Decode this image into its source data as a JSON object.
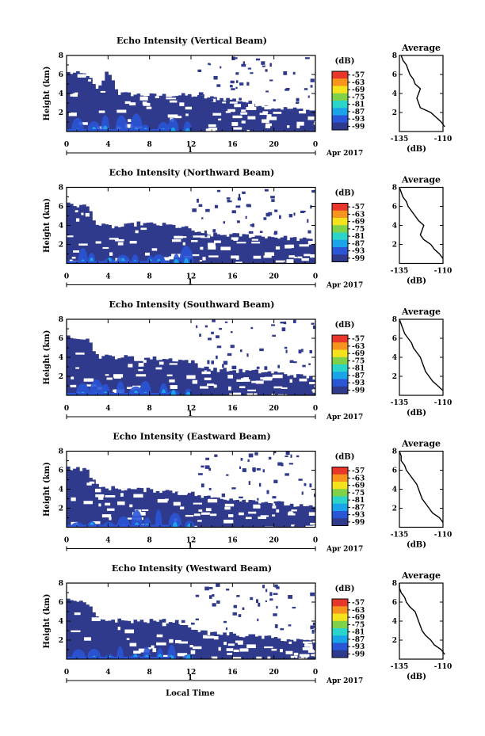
{
  "figure": {
    "colorbar_unit": "(dB)",
    "x_axis_label": "Local Time",
    "date_label": "Apr 2017",
    "day_tick_label": "1",
    "colorbar": {
      "ticks": [
        "-57",
        "-63",
        "-69",
        "-75",
        "-81",
        "-87",
        "-93",
        "-99"
      ],
      "colors": [
        "#e8372a",
        "#f7941d",
        "#f4e31c",
        "#7fd14a",
        "#2bd4c8",
        "#1aa3e8",
        "#2a55d6",
        "#303a8c"
      ]
    }
  },
  "chart_data": [
    {
      "type": "heatmap",
      "title": "Echo Intensity (Vertical Beam)",
      "ylabel": "Height (km)",
      "xlabel": "Local Time",
      "x_ticks": [
        "0",
        "4",
        "8",
        "12",
        "16",
        "20",
        "0"
      ],
      "xlim": [
        0,
        24
      ],
      "y_ticks": [
        "8",
        "6",
        "4",
        "2"
      ],
      "ylim": [
        0,
        8
      ],
      "colorbar_range": [
        -99,
        -57
      ],
      "echo_top_km": [
        [
          0,
          6.2
        ],
        [
          2,
          6.0
        ],
        [
          3,
          4.2
        ],
        [
          4,
          6.5
        ],
        [
          5,
          4.0
        ],
        [
          8,
          3.8
        ],
        [
          12,
          3.8
        ],
        [
          13,
          3.6
        ],
        [
          16,
          3.4
        ],
        [
          20,
          2.5
        ],
        [
          24,
          2.2
        ]
      ],
      "average_profile": {
        "title": "Average",
        "xlabel": "(dB)",
        "x_ticks": [
          "-135",
          "-110"
        ],
        "xlim": [
          -135,
          -110
        ],
        "y_ticks": [
          "8",
          "6",
          "4",
          "2"
        ],
        "ylim": [
          0,
          8
        ],
        "height_km": [
          0.5,
          1.0,
          1.5,
          2.0,
          2.5,
          3.0,
          3.5,
          4.0,
          4.5,
          5.0,
          5.5,
          6.0,
          6.5,
          7.0,
          7.5,
          8.0
        ],
        "value_db": [
          -109,
          -111,
          -114,
          -117,
          -123,
          -124,
          -125,
          -124,
          -123,
          -126,
          -127,
          -129,
          -130,
          -131,
          -133,
          -134
        ]
      }
    },
    {
      "type": "heatmap",
      "title": "Echo Intensity (Northward Beam)",
      "ylabel": "Height (km)",
      "xlabel": "Local Time",
      "x_ticks": [
        "0",
        "4",
        "8",
        "12",
        "16",
        "20",
        "0"
      ],
      "xlim": [
        0,
        24
      ],
      "y_ticks": [
        "8",
        "6",
        "4",
        "2"
      ],
      "ylim": [
        0,
        8
      ],
      "colorbar_range": [
        -99,
        -57
      ],
      "echo_top_km": [
        [
          0,
          6.2
        ],
        [
          2,
          6.0
        ],
        [
          3,
          4.0
        ],
        [
          5,
          3.8
        ],
        [
          7,
          4.2
        ],
        [
          10,
          4.0
        ],
        [
          12,
          3.6
        ],
        [
          13,
          3.0
        ],
        [
          16,
          3.0
        ],
        [
          20,
          2.8
        ],
        [
          24,
          2.4
        ]
      ],
      "average_profile": {
        "title": "Average",
        "xlabel": "(dB)",
        "x_ticks": [
          "-135",
          "-110"
        ],
        "xlim": [
          -135,
          -110
        ],
        "y_ticks": [
          "8",
          "6",
          "4",
          "2"
        ],
        "ylim": [
          0,
          8
        ],
        "height_km": [
          0.5,
          1.0,
          1.5,
          2.0,
          2.5,
          3.0,
          3.5,
          4.0,
          4.5,
          5.0,
          5.5,
          6.0,
          6.5,
          7.0,
          7.5,
          8.0
        ],
        "value_db": [
          -110,
          -112,
          -115,
          -117,
          -121,
          -123,
          -122,
          -121,
          -124,
          -126,
          -128,
          -130,
          -131,
          -133,
          -134,
          -135
        ]
      }
    },
    {
      "type": "heatmap",
      "title": "Echo Intensity (Southward Beam)",
      "ylabel": "Height (km)",
      "xlabel": "Local Time",
      "x_ticks": [
        "0",
        "4",
        "8",
        "12",
        "16",
        "20",
        "0"
      ],
      "xlim": [
        0,
        24
      ],
      "y_ticks": [
        "8",
        "6",
        "4",
        "2"
      ],
      "ylim": [
        0,
        8
      ],
      "colorbar_range": [
        -99,
        -57
      ],
      "echo_top_km": [
        [
          0,
          6.3
        ],
        [
          2,
          6.0
        ],
        [
          3,
          4.1
        ],
        [
          6,
          4.0
        ],
        [
          10,
          3.8
        ],
        [
          12,
          3.6
        ],
        [
          13,
          2.8
        ],
        [
          16,
          2.6
        ],
        [
          20,
          2.4
        ],
        [
          24,
          1.8
        ]
      ],
      "average_profile": {
        "title": "Average",
        "xlabel": "(dB)",
        "x_ticks": [
          "-135",
          "-110"
        ],
        "xlim": [
          -135,
          -110
        ],
        "y_ticks": [
          "8",
          "6",
          "4",
          "2"
        ],
        "ylim": [
          0,
          8
        ],
        "height_km": [
          0.5,
          1.0,
          1.5,
          2.0,
          2.5,
          3.0,
          3.5,
          4.0,
          4.5,
          5.0,
          5.5,
          6.0,
          6.5,
          7.0,
          7.5,
          8.0
        ],
        "value_db": [
          -110,
          -113,
          -116,
          -118,
          -120,
          -121,
          -122,
          -123,
          -125,
          -127,
          -128,
          -130,
          -132,
          -133,
          -134,
          -135
        ]
      }
    },
    {
      "type": "heatmap",
      "title": "Echo Intensity (Eastward Beam)",
      "ylabel": "Height (km)",
      "xlabel": "Local Time",
      "x_ticks": [
        "0",
        "4",
        "8",
        "12",
        "16",
        "20",
        "0"
      ],
      "xlim": [
        0,
        24
      ],
      "y_ticks": [
        "8",
        "6",
        "4",
        "2"
      ],
      "ylim": [
        0,
        8
      ],
      "colorbar_range": [
        -99,
        -57
      ],
      "echo_top_km": [
        [
          0,
          6.3
        ],
        [
          2,
          6.0
        ],
        [
          3,
          4.2
        ],
        [
          6,
          4.0
        ],
        [
          10,
          3.8
        ],
        [
          12,
          3.6
        ],
        [
          13,
          3.2
        ],
        [
          16,
          3.0
        ],
        [
          20,
          2.6
        ],
        [
          24,
          2.0
        ]
      ],
      "average_profile": {
        "title": "Average",
        "xlabel": "(dB)",
        "x_ticks": [
          "-135",
          "-110"
        ],
        "xlim": [
          -135,
          -110
        ],
        "y_ticks": [
          "8",
          "6",
          "4",
          "2"
        ],
        "ylim": [
          0,
          8
        ],
        "height_km": [
          0.5,
          1.0,
          1.5,
          2.0,
          2.5,
          3.0,
          3.5,
          4.0,
          4.5,
          5.0,
          5.5,
          6.0,
          6.5,
          7.0,
          7.5,
          8.0
        ],
        "value_db": [
          -110,
          -112,
          -116,
          -118,
          -120,
          -122,
          -123,
          -124,
          -125,
          -127,
          -129,
          -131,
          -132,
          -134,
          -134,
          -135
        ]
      }
    },
    {
      "type": "heatmap",
      "title": "Echo Intensity (Westward Beam)",
      "ylabel": "Height (km)",
      "xlabel": "Local Time",
      "x_ticks": [
        "0",
        "4",
        "8",
        "12",
        "16",
        "20",
        "0"
      ],
      "xlim": [
        0,
        24
      ],
      "y_ticks": [
        "8",
        "6",
        "4",
        "2"
      ],
      "ylim": [
        0,
        8
      ],
      "colorbar_range": [
        -99,
        -57
      ],
      "echo_top_km": [
        [
          0,
          6.2
        ],
        [
          2,
          5.8
        ],
        [
          3,
          4.2
        ],
        [
          6,
          4.0
        ],
        [
          10,
          4.0
        ],
        [
          12,
          3.8
        ],
        [
          13,
          2.8
        ],
        [
          16,
          2.6
        ],
        [
          20,
          2.2
        ],
        [
          24,
          1.8
        ]
      ],
      "average_profile": {
        "title": "Average",
        "xlabel": "(dB)",
        "x_ticks": [
          "-135",
          "-110"
        ],
        "xlim": [
          -135,
          -110
        ],
        "y_ticks": [
          "8",
          "6",
          "4",
          "2"
        ],
        "ylim": [
          0,
          8
        ],
        "height_km": [
          0.5,
          1.0,
          1.5,
          2.0,
          2.5,
          3.0,
          3.5,
          4.0,
          4.5,
          5.0,
          5.5,
          6.0,
          6.5,
          7.0,
          7.5,
          8.0
        ],
        "value_db": [
          -109,
          -111,
          -115,
          -117,
          -120,
          -122,
          -123,
          -124,
          -125,
          -126,
          -129,
          -131,
          -132,
          -134,
          -135,
          -135
        ]
      }
    }
  ]
}
